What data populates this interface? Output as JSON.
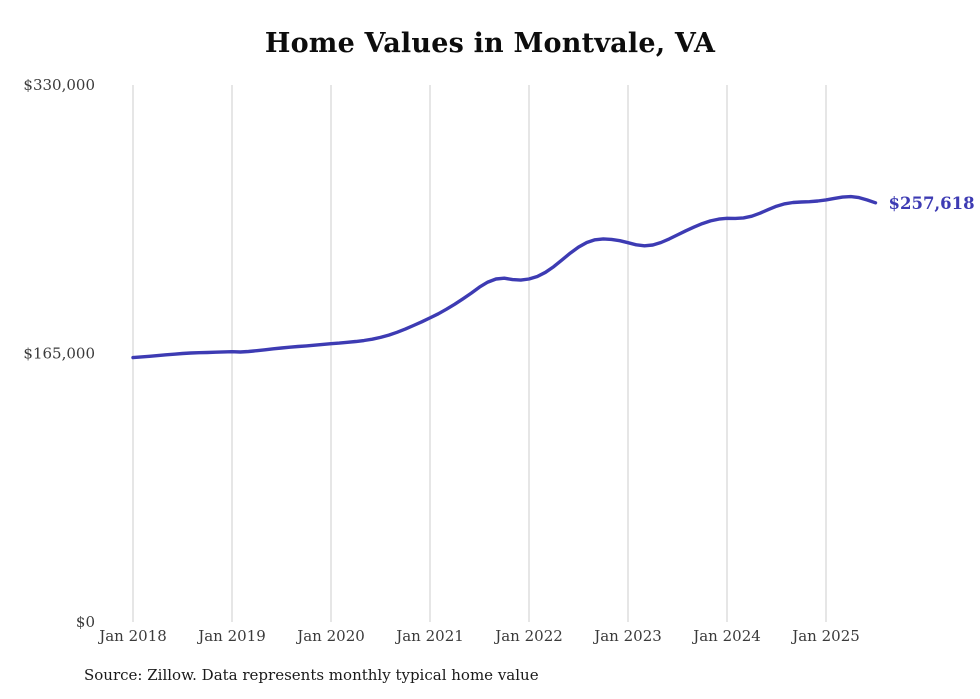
{
  "chart_data": {
    "type": "line",
    "title": "Home Values in Montvale, VA",
    "source": "Source: Zillow. Data represents monthly typical home value",
    "series_name": "Monthly typical home value",
    "line_color": "#3d3bb3",
    "grid_color": "#cccccc",
    "text_color": "#3a3a3a",
    "end_label": "$257,618",
    "final_value": 257618,
    "ylim": [
      0,
      330000
    ],
    "grid": "vertical-only",
    "legend": "none",
    "y_ticks": [
      {
        "value": 0,
        "label": "$0"
      },
      {
        "value": 165000,
        "label": "$165,000"
      },
      {
        "value": 330000,
        "label": "$330,000"
      }
    ],
    "x_ticks": [
      "Jan 2018",
      "Jan 2019",
      "Jan 2020",
      "Jan 2021",
      "Jan 2022",
      "Jan 2023",
      "Jan 2024",
      "Jan 2025"
    ],
    "months": [
      "2018-01",
      "2018-02",
      "2018-03",
      "2018-04",
      "2018-05",
      "2018-06",
      "2018-07",
      "2018-08",
      "2018-09",
      "2018-10",
      "2018-11",
      "2018-12",
      "2019-01",
      "2019-02",
      "2019-03",
      "2019-04",
      "2019-05",
      "2019-06",
      "2019-07",
      "2019-08",
      "2019-09",
      "2019-10",
      "2019-11",
      "2019-12",
      "2020-01",
      "2020-02",
      "2020-03",
      "2020-04",
      "2020-05",
      "2020-06",
      "2020-07",
      "2020-08",
      "2020-09",
      "2020-10",
      "2020-11",
      "2020-12",
      "2021-01",
      "2021-02",
      "2021-03",
      "2021-04",
      "2021-05",
      "2021-06",
      "2021-07",
      "2021-08",
      "2021-09",
      "2021-10",
      "2021-11",
      "2021-12",
      "2022-01",
      "2022-02",
      "2022-03",
      "2022-04",
      "2022-05",
      "2022-06",
      "2022-07",
      "2022-08",
      "2022-09",
      "2022-10",
      "2022-11",
      "2022-12",
      "2023-01",
      "2023-02",
      "2023-03",
      "2023-04",
      "2023-05",
      "2023-06",
      "2023-07",
      "2023-08",
      "2023-09",
      "2023-10",
      "2023-11",
      "2023-12",
      "2024-01",
      "2024-02",
      "2024-03",
      "2024-04",
      "2024-05",
      "2024-06",
      "2024-07",
      "2024-08",
      "2024-09",
      "2024-10",
      "2024-11",
      "2024-12",
      "2025-01",
      "2025-02",
      "2025-03",
      "2025-04",
      "2025-05",
      "2025-06",
      "2025-07"
    ],
    "values": [
      162500,
      162900,
      163300,
      163700,
      164200,
      164600,
      165000,
      165300,
      165500,
      165600,
      165800,
      166000,
      166100,
      165900,
      166200,
      166700,
      167300,
      167900,
      168400,
      168900,
      169300,
      169700,
      170100,
      170600,
      171000,
      171400,
      171900,
      172400,
      173000,
      173800,
      174900,
      176300,
      178000,
      180000,
      182200,
      184500,
      186900,
      189400,
      192200,
      195300,
      198600,
      202100,
      205800,
      208900,
      210800,
      211300,
      210400,
      210100,
      210800,
      212300,
      214900,
      218400,
      222500,
      226700,
      230400,
      233200,
      234900,
      235400,
      235100,
      234300,
      233100,
      231800,
      231200,
      231700,
      233200,
      235400,
      237900,
      240400,
      242700,
      244800,
      246500,
      247600,
      248100,
      248000,
      248300,
      249400,
      251200,
      253400,
      255500,
      257000,
      257800,
      258100,
      258300,
      258700,
      259400,
      260300,
      261100,
      261400,
      260800,
      259300,
      257618
    ]
  }
}
